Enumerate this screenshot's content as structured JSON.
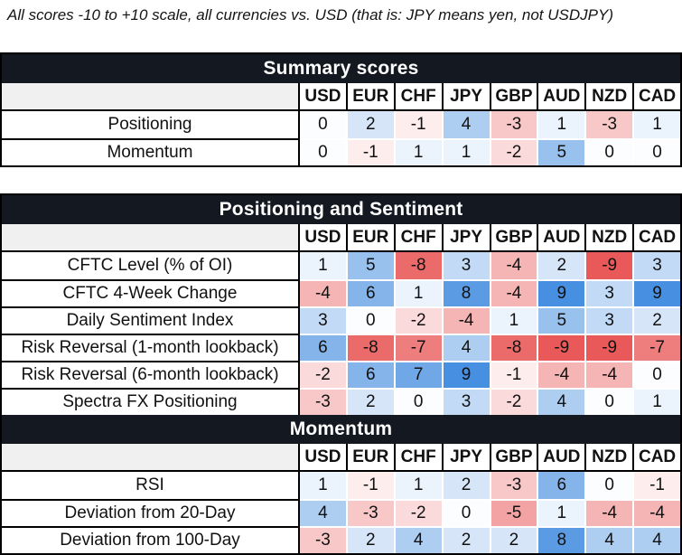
{
  "chart_data": {
    "type": "heatmap",
    "title": "All scores -10 to +10 scale, all currencies vs. USD (that is: JPY means yen, not USDJPY)",
    "columns": [
      "USD",
      "EUR",
      "CHF",
      "JPY",
      "GBP",
      "AUD",
      "NZD",
      "CAD"
    ],
    "value_range": [
      -10,
      10
    ],
    "legend": "none",
    "colors": {
      "positive_max": "#3282dc",
      "negative_max": "#e64646",
      "zero": "#fcfdfe",
      "band_background": "#141821",
      "band_text": "#ffffff",
      "corner_background": "#f0f0f0",
      "grid_black": "#000000",
      "grid_white": "#ffffff",
      "text": "#111111"
    },
    "tables": [
      {
        "name": "summary",
        "sections": [
          {
            "header": "Summary scores",
            "rows": [
              {
                "label": "Positioning",
                "values": [
                  0,
                  2,
                  -1,
                  4,
                  -3,
                  1,
                  -3,
                  1
                ]
              },
              {
                "label": "Momentum",
                "values": [
                  0,
                  -1,
                  1,
                  1,
                  -2,
                  5,
                  0,
                  0
                ]
              }
            ]
          }
        ]
      },
      {
        "name": "detail",
        "sections": [
          {
            "header": "Positioning and Sentiment",
            "rows": [
              {
                "label": "CFTC Level (% of OI)",
                "values": [
                  1,
                  5,
                  -8,
                  3,
                  -4,
                  2,
                  -9,
                  3
                ]
              },
              {
                "label": "CFTC 4-Week Change",
                "values": [
                  -4,
                  6,
                  1,
                  8,
                  -4,
                  9,
                  3,
                  9
                ]
              },
              {
                "label": "Daily Sentiment Index",
                "values": [
                  3,
                  0,
                  -2,
                  -4,
                  1,
                  5,
                  3,
                  2
                ]
              },
              {
                "label": "Risk Reversal (1-month lookback)",
                "values": [
                  6,
                  -8,
                  -7,
                  4,
                  -8,
                  -9,
                  -9,
                  -7
                ]
              },
              {
                "label": "Risk Reversal (6-month lookback)",
                "values": [
                  -2,
                  6,
                  7,
                  9,
                  -1,
                  -4,
                  -4,
                  0
                ]
              },
              {
                "label": "Spectra FX Positioning",
                "values": [
                  -3,
                  2,
                  0,
                  3,
                  -2,
                  4,
                  0,
                  1
                ]
              }
            ]
          },
          {
            "header": "Momentum",
            "rows": [
              {
                "label": "RSI",
                "values": [
                  1,
                  -1,
                  1,
                  2,
                  -3,
                  6,
                  0,
                  -1
                ]
              },
              {
                "label": "Deviation from 20-Day",
                "values": [
                  4,
                  -3,
                  -2,
                  0,
                  -5,
                  1,
                  -4,
                  -4
                ]
              },
              {
                "label": "Deviation from 100-Day",
                "values": [
                  -3,
                  2,
                  4,
                  2,
                  2,
                  8,
                  4,
                  4
                ]
              }
            ]
          }
        ]
      }
    ]
  }
}
